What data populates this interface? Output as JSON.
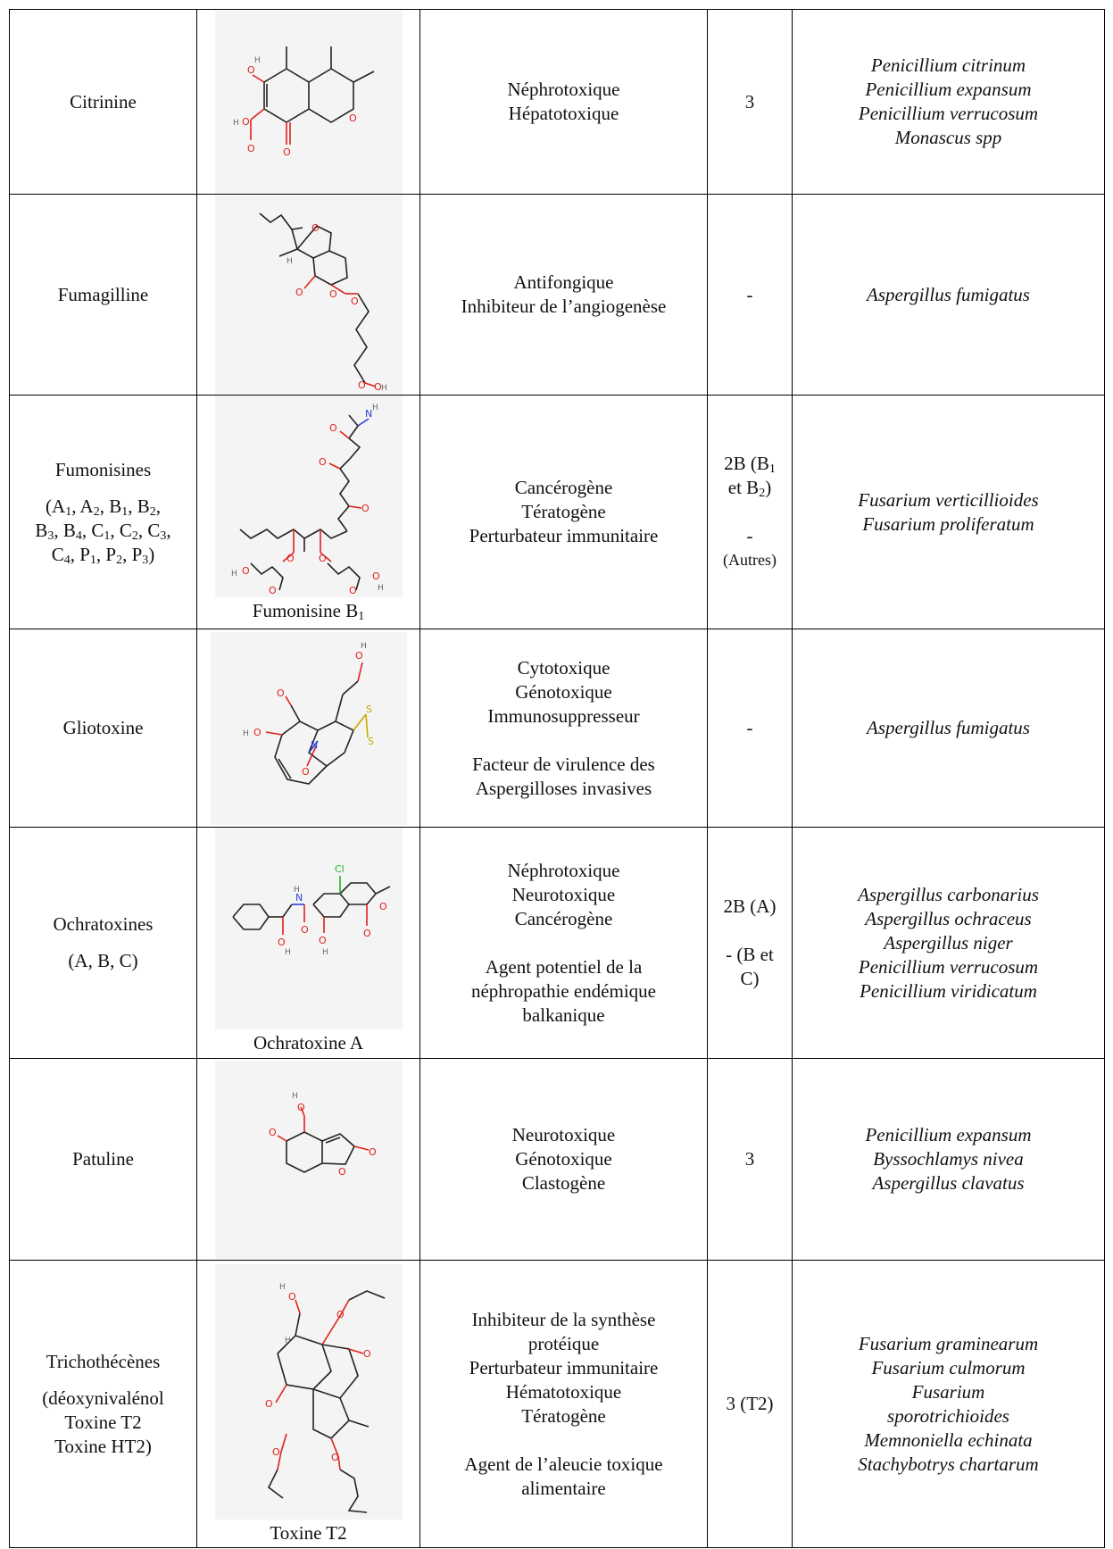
{
  "rows": [
    {
      "name": [
        "Citrinine"
      ],
      "subname": [],
      "caption": "",
      "effects": [
        "Néphrotoxique",
        "Hépatotoxique"
      ],
      "classification": [
        "3"
      ],
      "species": [
        "Penicillium citrinum",
        "Penicillium expansum",
        "Penicillium verrucosum",
        "Monascus spp"
      ]
    },
    {
      "name": [
        "Fumagilline"
      ],
      "subname": [],
      "caption": "",
      "effects": [
        "Antifongique",
        "Inhibiteur de l’angiogenèse"
      ],
      "classification": [
        "-"
      ],
      "species": [
        "Aspergillus fumigatus"
      ]
    },
    {
      "name": [
        "Fumonisines"
      ],
      "subname": [
        "(A1, A2, B1, B2,",
        "B3, B4, C1, C2, C3,",
        "C4, P1, P2, P3)"
      ],
      "caption": "Fumonisine B1",
      "effects": [
        "Cancérogène",
        "Tératogène",
        "Perturbateur immunitaire"
      ],
      "classification": [
        "2B (B1",
        "et B2)",
        "",
        "-",
        "(Autres)"
      ],
      "species": [
        "Fusarium verticillioides",
        "Fusarium proliferatum"
      ]
    },
    {
      "name": [
        "Gliotoxine"
      ],
      "subname": [],
      "caption": "",
      "effects": [
        "Cytotoxique",
        "Génotoxique",
        "Immunosuppresseur",
        "",
        "Facteur de virulence des",
        "Aspergilloses invasives"
      ],
      "classification": [
        "-"
      ],
      "species": [
        "Aspergillus fumigatus"
      ]
    },
    {
      "name": [
        "Ochratoxines"
      ],
      "subname": [
        "(A, B, C)"
      ],
      "caption": "Ochratoxine A",
      "effects": [
        "Néphrotoxique",
        "Neurotoxique",
        "Cancérogène",
        "",
        "Agent potentiel de la",
        "néphropathie endémique",
        "balkanique"
      ],
      "classification": [
        "2B (A)",
        "",
        "- (B et",
        "C)"
      ],
      "species": [
        "Aspergillus carbonarius",
        "Aspergillus ochraceus",
        "Aspergillus niger",
        "Penicillium verrucosum",
        "Penicillium viridicatum"
      ]
    },
    {
      "name": [
        "Patuline"
      ],
      "subname": [],
      "caption": "",
      "effects": [
        "Neurotoxique",
        "Génotoxique",
        "Clastogène"
      ],
      "classification": [
        "3"
      ],
      "species": [
        "Penicillium expansum",
        "Byssochlamys nivea",
        "Aspergillus clavatus"
      ]
    },
    {
      "name": [
        "Trichothécènes"
      ],
      "subname": [
        "(déoxynivalénol",
        "Toxine T2",
        "Toxine HT2)"
      ],
      "caption": "Toxine T2",
      "effects": [
        "Inhibiteur de la synthèse",
        "protéique",
        "Perturbateur immunitaire",
        "Hématotoxique",
        "Tératogène",
        "",
        "Agent de l’aleucie toxique",
        "alimentaire"
      ],
      "classification": [
        "3 (T2)"
      ],
      "species": [
        "Fusarium graminearum",
        "Fusarium culmorum",
        "Fusarium",
        "sporotrichioides",
        "Memnoniella echinata",
        "Stachybotrys chartarum"
      ]
    }
  ]
}
